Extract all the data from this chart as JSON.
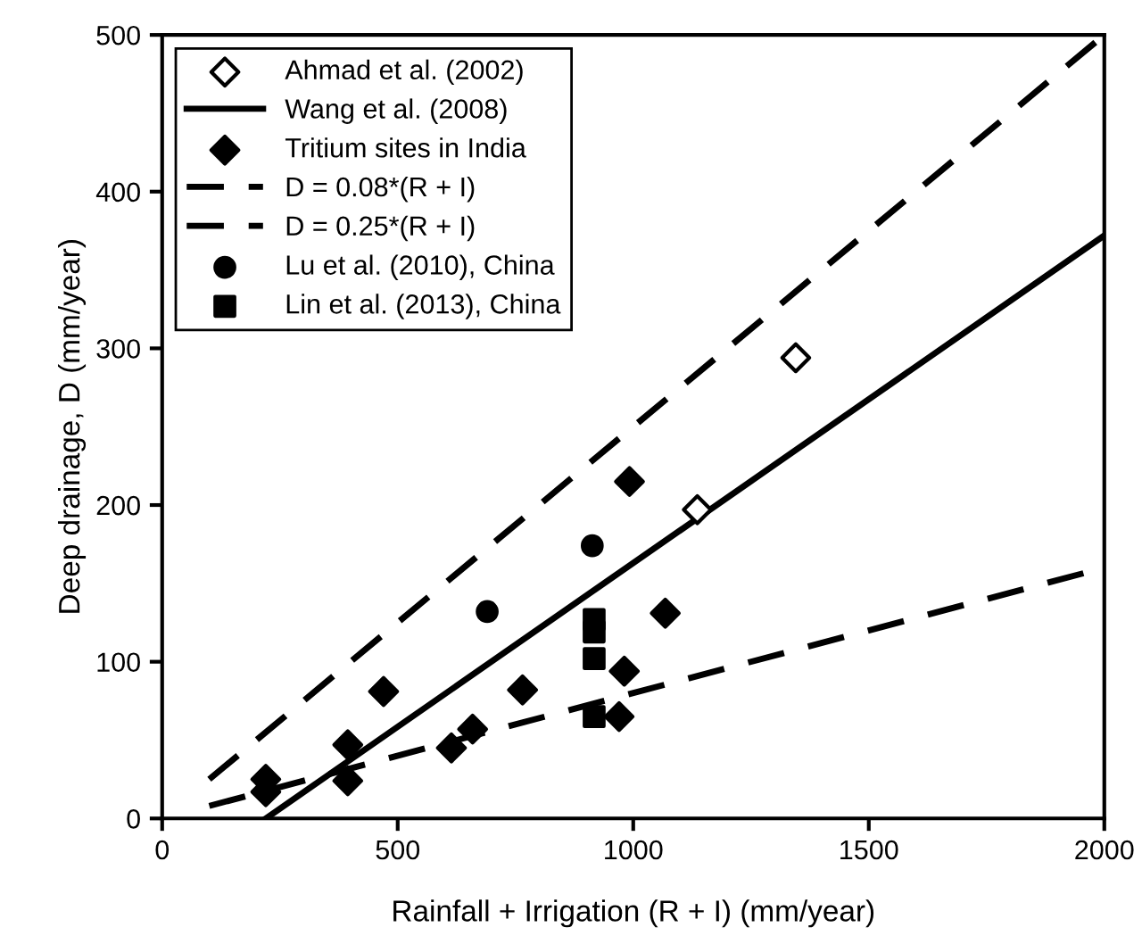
{
  "chart_data": {
    "type": "scatter",
    "xlabel": "Rainfall + Irrigation (R + I) (mm/year)",
    "ylabel": "Deep drainage, D (mm/year)",
    "xlim": [
      0,
      2000
    ],
    "ylim": [
      0,
      500
    ],
    "xticks": [
      0,
      500,
      1000,
      1500,
      2000
    ],
    "yticks": [
      0,
      100,
      200,
      300,
      400,
      500
    ],
    "grid": false,
    "legend": "top left",
    "series": [
      {
        "name": "Ahmad et al. (2002)",
        "marker": "diamond",
        "color": "#ffffff",
        "x": [
          1136,
          1345
        ],
        "values": [
          197,
          294
        ]
      },
      {
        "name": "Wang et al. (2008)",
        "type": "line",
        "line_style": "solid",
        "color": "#000000",
        "x": [
          220,
          2000
        ],
        "values": [
          0,
          372
        ]
      },
      {
        "name": "Tritium sites in India",
        "marker": "diamond",
        "color": "#000000",
        "x": [
          220,
          220,
          394,
          394,
          470,
          614,
          659,
          765,
          970,
          981,
          992,
          1068
        ],
        "values": [
          25,
          17,
          24,
          47,
          81,
          45,
          57,
          82,
          65,
          94,
          215,
          131
        ]
      },
      {
        "name": "D = 0.08*(R + I)",
        "type": "line",
        "line_style": "dashed",
        "color": "#000000",
        "x": [
          100,
          2000
        ],
        "values": [
          8,
          160
        ]
      },
      {
        "name": "D = 0.25*(R + I)",
        "type": "line",
        "line_style": "dashed",
        "color": "#000000",
        "x": [
          100,
          2000
        ],
        "values": [
          25,
          500
        ]
      },
      {
        "name": "Lu et al. (2010), China",
        "marker": "circle",
        "color": "#000000",
        "x": [
          690,
          913
        ],
        "values": [
          132,
          174
        ]
      },
      {
        "name": "Lin et al. (2013), China",
        "marker": "square",
        "color": "#000000",
        "x": [
          917,
          917,
          917,
          917
        ],
        "values": [
          127,
          119,
          102,
          65
        ]
      }
    ]
  }
}
